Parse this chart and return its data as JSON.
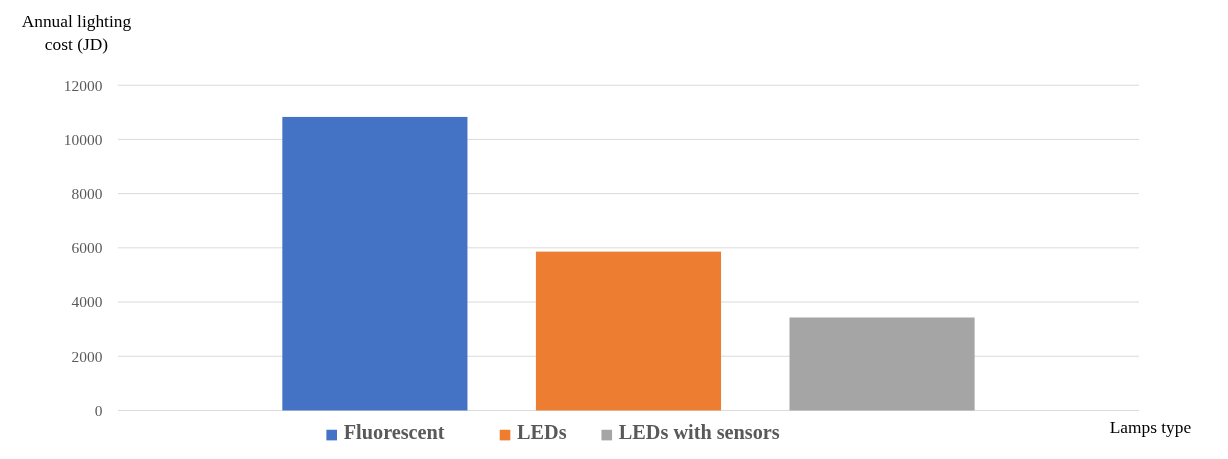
{
  "chart_data": {
    "type": "bar",
    "categories": [
      null
    ],
    "series": [
      {
        "name": "Fluorescent",
        "color": "#4472c4",
        "values": [
          10830
        ]
      },
      {
        "name": "LEDs",
        "color": "#ed7d31",
        "values": [
          5860
        ]
      },
      {
        "name": "LEDs with sensors",
        "color": "#a5a5a5",
        "values": [
          3430
        ]
      }
    ],
    "ylabel": "Annual lighting cost (JD)",
    "xlabel": "Lamps type",
    "ylim": [
      0,
      12000
    ],
    "yticks": [
      0,
      2000,
      4000,
      6000,
      8000,
      10000,
      12000
    ],
    "grid": "y",
    "legend": "bottom"
  }
}
